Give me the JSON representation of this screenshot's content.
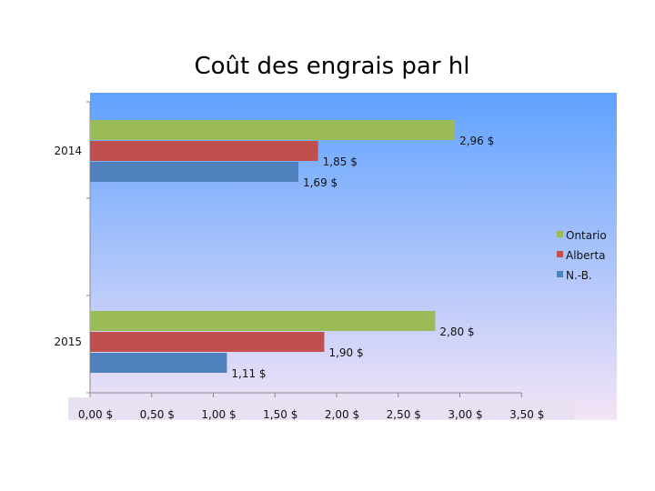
{
  "chart_data": {
    "type": "bar",
    "orientation": "horizontal",
    "title": "Coût des engrais par hl",
    "categories": [
      "2014",
      "2015"
    ],
    "series": [
      {
        "name": "Ontario",
        "values": [
          2.96,
          2.8
        ],
        "labels": [
          "2,96 $",
          "2,80 $"
        ],
        "color": "#9bbb59"
      },
      {
        "name": "Alberta",
        "values": [
          1.85,
          1.9
        ],
        "labels": [
          "1,85 $",
          "1,90 $"
        ],
        "color": "#c0504d"
      },
      {
        "name": "N.-B.",
        "values": [
          1.69,
          1.11
        ],
        "labels": [
          "1,69 $",
          "1,11 $"
        ],
        "color": "#4f81bd"
      }
    ],
    "xlim": [
      0,
      3.5
    ],
    "xticks": [
      0,
      0.5,
      1.0,
      1.5,
      2.0,
      2.5,
      3.0,
      3.5
    ],
    "xtick_labels": [
      "0,00 $",
      "0,50 $",
      "1,00 $",
      "1,50 $",
      "2,00 $",
      "2,50 $",
      "3,00 $",
      "3,50 $"
    ],
    "xlabel": "",
    "ylabel": "",
    "legend": "right",
    "background_gradient": [
      "#5fa2ff",
      "#f4e4f6"
    ]
  }
}
